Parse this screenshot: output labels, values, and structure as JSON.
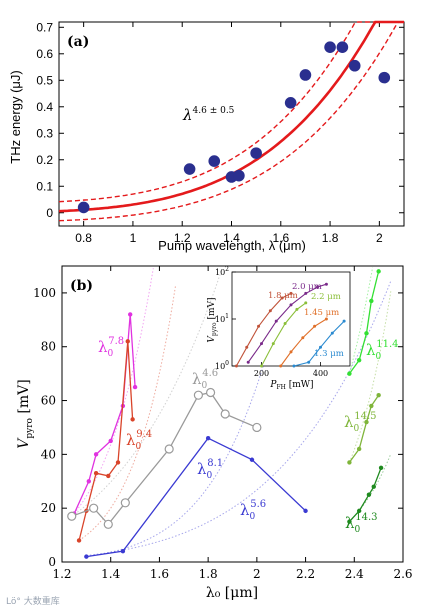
{
  "watermark_text": "Lö° 大数重库",
  "chart_data": [
    {
      "type": "scatter",
      "panel_label": "(a)",
      "xlabel": "Pump wavelength, λ (μm)",
      "ylabel": "THz energy (μJ)",
      "xlim": [
        0.7,
        2.1
      ],
      "ylim": [
        -0.05,
        0.72
      ],
      "xticks": [
        0.8,
        1,
        1.2,
        1.4,
        1.6,
        1.8,
        2
      ],
      "yticks": [
        0,
        0.1,
        0.2,
        0.3,
        0.4,
        0.5,
        0.6,
        0.7
      ],
      "fit_exponent": 4.6,
      "fit_annotation": {
        "base": "λ",
        "exponent": "4.6 ± 0.5"
      },
      "grid": false,
      "points": {
        "x": [
          0.8,
          1.23,
          1.33,
          1.4,
          1.43,
          1.5,
          1.64,
          1.7,
          1.8,
          1.85,
          1.9,
          2.02
        ],
        "y": [
          0.02,
          0.165,
          0.195,
          0.135,
          0.14,
          0.225,
          0.415,
          0.52,
          0.625,
          0.625,
          0.555,
          0.51
        ]
      },
      "fit_colors": {
        "line": "#e41a1c",
        "points": "#2a2f8f"
      }
    },
    {
      "type": "line",
      "panel_label": "(b)",
      "xlabel": "λ₀ [μm]",
      "ylabel": "V_pyro [mV]",
      "xlim": [
        1.2,
        2.6
      ],
      "ylim": [
        0,
        110
      ],
      "xticks": [
        1.2,
        1.4,
        1.6,
        1.8,
        2,
        2.2,
        2.4,
        2.6
      ],
      "yticks": [
        0,
        20,
        40,
        60,
        80,
        100
      ],
      "series": [
        {
          "name": "λ₀^7.8",
          "color": "#e033e0",
          "x": [
            1.25,
            1.31,
            1.34,
            1.4,
            1.45,
            1.48,
            1.5
          ],
          "y": [
            18,
            30,
            40,
            45,
            58,
            92,
            65
          ]
        },
        {
          "name": "λ₀^9.4",
          "color": "#d9442a",
          "x": [
            1.27,
            1.3,
            1.34,
            1.39,
            1.43,
            1.47,
            1.49
          ],
          "y": [
            8,
            19,
            33,
            32,
            37,
            82,
            53
          ]
        },
        {
          "name": "λ₀^4.6",
          "color": "#9a9a9a",
          "x": [
            1.24,
            1.33,
            1.39,
            1.46,
            1.64,
            1.76,
            1.81,
            1.87,
            2.0
          ],
          "y": [
            17,
            20,
            14,
            22,
            42,
            62,
            63,
            55,
            50
          ]
        },
        {
          "name": "λ₀^8.1",
          "color": "#3a3ad2",
          "x": [
            1.3,
            1.45,
            1.8,
            1.98,
            2.2
          ],
          "y": [
            2,
            4,
            46,
            38,
            19
          ]
        },
        {
          "name": "λ₀^11.4",
          "color": "#33e033",
          "x": [
            2.38,
            2.42,
            2.45,
            2.47,
            2.5
          ],
          "y": [
            70,
            75,
            85,
            97,
            108
          ]
        },
        {
          "name": "λ₀^14.5",
          "color": "#7fb53a",
          "x": [
            2.38,
            2.42,
            2.45,
            2.47,
            2.5
          ],
          "y": [
            37,
            42,
            52,
            58,
            62
          ]
        },
        {
          "name": "λ₀^14.3",
          "color": "#1f8a1f",
          "x": [
            2.38,
            2.42,
            2.46,
            2.48,
            2.51
          ],
          "y": [
            15,
            19,
            25,
            28,
            35
          ]
        }
      ],
      "fit_exponents": [
        7.8,
        9.4,
        4.6,
        8.1,
        5.6,
        11.4,
        14.5,
        14.3
      ],
      "legend_placement": "labels placed beside each curve",
      "series_labels": [
        {
          "base": "λ",
          "sub": "0",
          "sup": "7.8",
          "color": "#e033e0"
        },
        {
          "base": "λ",
          "sub": "0",
          "sup": "9.4",
          "color": "#d9442a"
        },
        {
          "base": "λ",
          "sub": "0",
          "sup": "4.6",
          "color": "#9a9a9a"
        },
        {
          "base": "λ",
          "sub": "0",
          "sup": "8.1",
          "color": "#3a3ad2"
        },
        {
          "base": "λ",
          "sub": "0",
          "sup": "5.6",
          "color": "#3a3ad2"
        },
        {
          "base": "λ",
          "sub": "0",
          "sup": "11.4",
          "color": "#33e033"
        },
        {
          "base": "λ",
          "sub": "0",
          "sup": "14.5",
          "color": "#7fb53a"
        },
        {
          "base": "λ",
          "sub": "0",
          "sup": "14.3",
          "color": "#1f8a1f"
        }
      ],
      "inset": {
        "type": "line",
        "xlabel": "P_FH [mW]",
        "ylabel": "V_pyro [mV]",
        "xlim": [
          100,
          500
        ],
        "ylim": [
          1,
          100
        ],
        "yscale": "log",
        "xticks": [
          200,
          400
        ],
        "yticks": [
          1,
          10,
          100
        ],
        "series": [
          {
            "name": "2.0 μm",
            "color": "#7a2a8a",
            "x": [
              155,
              200,
              250,
              300,
              350,
              390,
              420
            ],
            "y": [
              1.2,
              3,
              9,
              20,
              35,
              48,
              55
            ]
          },
          {
            "name": "1.8 μm",
            "color": "#c0533a",
            "x": [
              115,
              150,
              190,
              230,
              270,
              300
            ],
            "y": [
              1,
              2.5,
              7,
              15,
              28,
              35
            ]
          },
          {
            "name": "2.2 μm",
            "color": "#8bbf3a",
            "x": [
              200,
              240,
              280,
              320,
              350
            ],
            "y": [
              1,
              3,
              8,
              16,
              22
            ]
          },
          {
            "name": "1.45 μm",
            "color": "#e0702a",
            "x": [
              265,
              300,
              340,
              380,
              420
            ],
            "y": [
              1,
              2,
              4,
              7,
              10
            ]
          },
          {
            "name": "1.3 μm",
            "color": "#2a8ad0",
            "x": [
              310,
              360,
              400,
              440,
              480
            ],
            "y": [
              0.8,
              1.2,
              2.5,
              5,
              9
            ]
          }
        ]
      }
    }
  ]
}
